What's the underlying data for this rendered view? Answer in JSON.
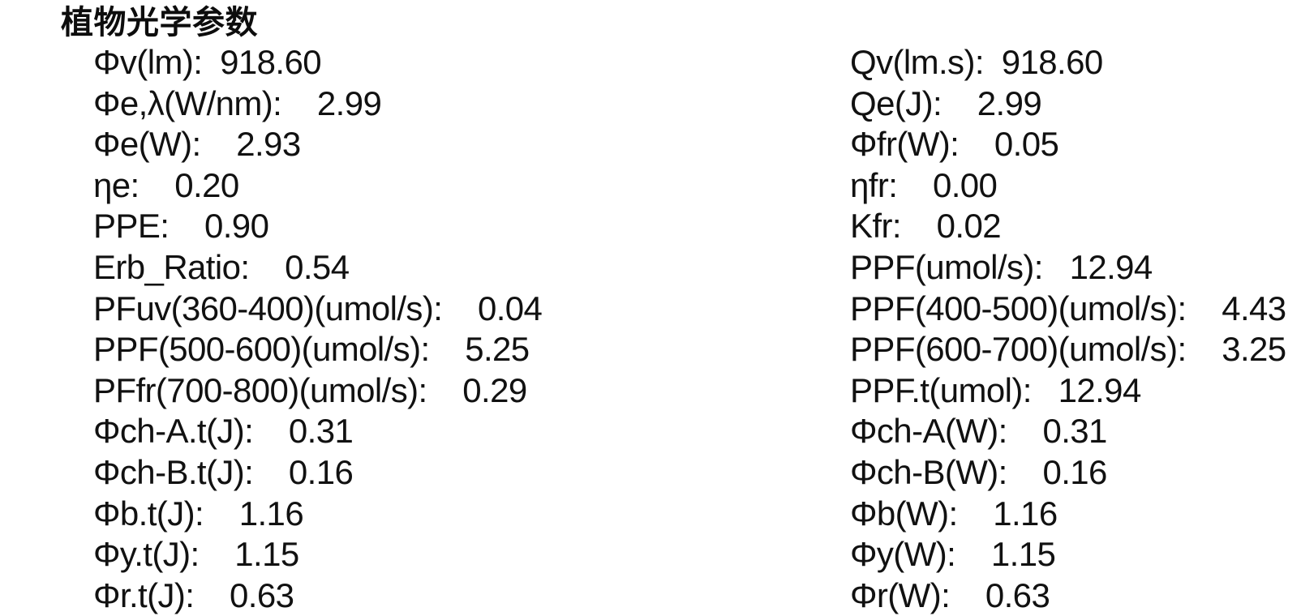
{
  "page": {
    "title": "植物光学参数"
  },
  "rows": [
    {
      "left": {
        "label": "Φv(lm):",
        "value": "918.60"
      },
      "right": {
        "label": "Qv(lm.s):",
        "value": "918.60"
      }
    },
    {
      "left": {
        "label": "Φe,λ(W/nm):",
        "value": "2.99"
      },
      "right": {
        "label": "Qe(J):",
        "value": "2.99"
      }
    },
    {
      "left": {
        "label": "Φe(W):",
        "value": "2.93"
      },
      "right": {
        "label": "Φfr(W):",
        "value": "0.05"
      }
    },
    {
      "left": {
        "label": "ηe:",
        "value": "0.20"
      },
      "right": {
        "label": "ηfr:",
        "value": "0.00"
      }
    },
    {
      "left": {
        "label": "PPE:",
        "value": "0.90"
      },
      "right": {
        "label": "Kfr:",
        "value": "0.02"
      }
    },
    {
      "left": {
        "label": "Erb_Ratio:",
        "value": "0.54"
      },
      "right": {
        "label": "PPF(umol/s):",
        "value": "12.94"
      }
    },
    {
      "left": {
        "label": "PFuv(360-400)(umol/s):",
        "value": "0.04"
      },
      "right": {
        "label": "PPF(400-500)(umol/s):",
        "value": "4.43"
      }
    },
    {
      "left": {
        "label": "PPF(500-600)(umol/s):",
        "value": "5.25"
      },
      "right": {
        "label": "PPF(600-700)(umol/s):",
        "value": "3.25"
      }
    },
    {
      "left": {
        "label": "PFfr(700-800)(umol/s):",
        "value": "0.29"
      },
      "right": {
        "label": "PPF.t(umol):",
        "value": "12.94"
      }
    },
    {
      "left": {
        "label": "Φch-A.t(J):",
        "value": "0.31"
      },
      "right": {
        "label": "Φch-A(W):",
        "value": "0.31"
      }
    },
    {
      "left": {
        "label": "Φch-B.t(J):",
        "value": "0.16"
      },
      "right": {
        "label": "Φch-B(W):",
        "value": "0.16"
      }
    },
    {
      "left": {
        "label": "Φb.t(J):",
        "value": "1.16"
      },
      "right": {
        "label": "Φb(W):",
        "value": "1.16"
      }
    },
    {
      "left": {
        "label": "Φy.t(J):",
        "value": "1.15"
      },
      "right": {
        "label": "Φy(W):",
        "value": "1.15"
      }
    },
    {
      "left": {
        "label": "Φr.t(J):",
        "value": "0.63"
      },
      "right": {
        "label": "Φr(W):",
        "value": "0.63"
      }
    }
  ]
}
